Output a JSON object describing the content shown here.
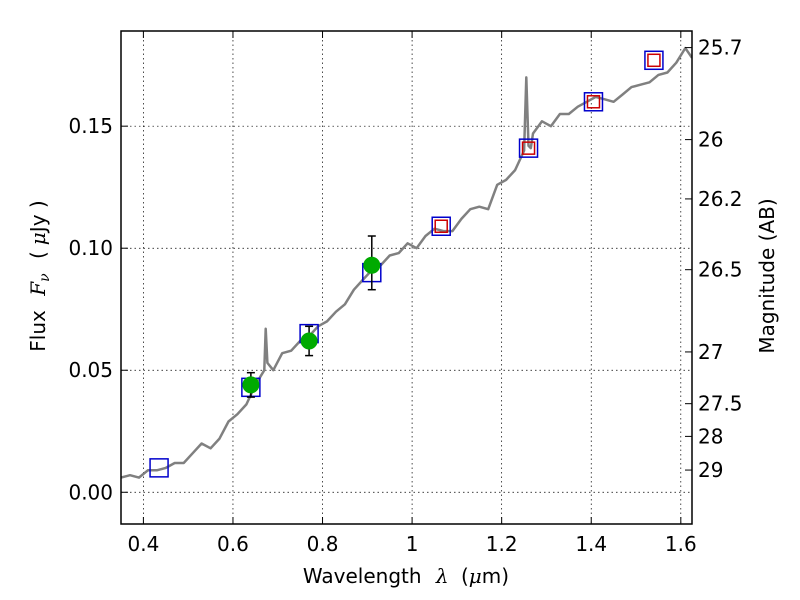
{
  "chart_data": {
    "type": "line",
    "title": "",
    "xlabel": {
      "prefix": "Wavelength",
      "symbol": "λ",
      "unit_open": "(",
      "unit_sym": "μ",
      "unit_rest": "m)"
    },
    "ylabel": {
      "prefix": "Flux",
      "symbol": "F",
      "subscript": "ν",
      "unit_open": "(",
      "unit_sym": "μ",
      "unit_rest": "Jy )"
    },
    "y2label": "Magnitude (AB)",
    "xlim": [
      0.35,
      1.625
    ],
    "ylim": [
      -0.013,
      0.189
    ],
    "grid": true,
    "x_ticks": [
      {
        "v": 0.4,
        "label": "0.4"
      },
      {
        "v": 0.6,
        "label": "0.6"
      },
      {
        "v": 0.8,
        "label": "0.8"
      },
      {
        "v": 1.0,
        "label": "1"
      },
      {
        "v": 1.2,
        "label": "1.2"
      },
      {
        "v": 1.4,
        "label": "1.4"
      },
      {
        "v": 1.6,
        "label": "1.6"
      }
    ],
    "y_ticks": [
      {
        "v": 0.0,
        "label": "0.00"
      },
      {
        "v": 0.05,
        "label": "0.05"
      },
      {
        "v": 0.1,
        "label": "0.10"
      },
      {
        "v": 0.15,
        "label": "0.15"
      }
    ],
    "y2_ticks": [
      {
        "flux": 0.1822,
        "label": "25.7"
      },
      {
        "flux": 0.1445,
        "label": "26"
      },
      {
        "flux": 0.1202,
        "label": "26.2"
      },
      {
        "flux": 0.0912,
        "label": "26.5"
      },
      {
        "flux": 0.0575,
        "label": "27"
      },
      {
        "flux": 0.0363,
        "label": "27.5"
      },
      {
        "flux": 0.0229,
        "label": "28"
      },
      {
        "flux": 0.0091,
        "label": "29"
      }
    ],
    "series": [
      {
        "type": "line",
        "color": "#808080",
        "x": [
          0.35,
          0.37,
          0.39,
          0.41,
          0.43,
          0.45,
          0.47,
          0.49,
          0.51,
          0.53,
          0.55,
          0.57,
          0.59,
          0.61,
          0.63,
          0.65,
          0.67,
          0.673,
          0.677,
          0.69,
          0.71,
          0.73,
          0.75,
          0.77,
          0.79,
          0.81,
          0.83,
          0.85,
          0.87,
          0.89,
          0.91,
          0.93,
          0.95,
          0.97,
          0.99,
          1.01,
          1.03,
          1.05,
          1.07,
          1.09,
          1.11,
          1.13,
          1.15,
          1.17,
          1.19,
          1.21,
          1.23,
          1.25,
          1.255,
          1.26,
          1.265,
          1.27,
          1.29,
          1.31,
          1.33,
          1.35,
          1.37,
          1.39,
          1.41,
          1.43,
          1.45,
          1.47,
          1.49,
          1.51,
          1.53,
          1.55,
          1.57,
          1.59,
          1.61,
          1.625
        ],
        "y": [
          0.006,
          0.007,
          0.006,
          0.009,
          0.009,
          0.01,
          0.012,
          0.012,
          0.016,
          0.02,
          0.018,
          0.022,
          0.029,
          0.032,
          0.036,
          0.044,
          0.05,
          0.067,
          0.053,
          0.05,
          0.057,
          0.058,
          0.062,
          0.064,
          0.068,
          0.07,
          0.074,
          0.077,
          0.083,
          0.087,
          0.091,
          0.093,
          0.097,
          0.098,
          0.102,
          0.1,
          0.105,
          0.108,
          0.107,
          0.107,
          0.112,
          0.116,
          0.117,
          0.116,
          0.126,
          0.128,
          0.132,
          0.14,
          0.17,
          0.142,
          0.141,
          0.147,
          0.152,
          0.15,
          0.155,
          0.155,
          0.158,
          0.16,
          0.162,
          0.161,
          0.16,
          0.163,
          0.166,
          0.167,
          0.168,
          0.171,
          0.172,
          0.176,
          0.182,
          0.178
        ]
      },
      {
        "type": "scatter",
        "marker": "square",
        "color": "#0000cc",
        "x": [
          0.435,
          0.64,
          0.77,
          0.91,
          1.065,
          1.26,
          1.405,
          1.54
        ],
        "y": [
          0.01,
          0.043,
          0.065,
          0.09,
          0.109,
          0.141,
          0.16,
          0.177
        ]
      },
      {
        "type": "scatter",
        "marker": "square",
        "color": "#cc0000",
        "x": [
          1.065,
          1.26,
          1.405,
          1.54
        ],
        "y": [
          0.109,
          0.141,
          0.16,
          0.177
        ]
      },
      {
        "type": "scatter",
        "marker": "circle",
        "color": "#00aa00",
        "x": [
          0.64,
          0.77,
          0.91
        ],
        "y": [
          0.044,
          0.062,
          0.093
        ],
        "yerr_low": [
          0.005,
          0.006,
          0.01
        ],
        "yerr_high": [
          0.005,
          0.006,
          0.012
        ]
      }
    ]
  }
}
